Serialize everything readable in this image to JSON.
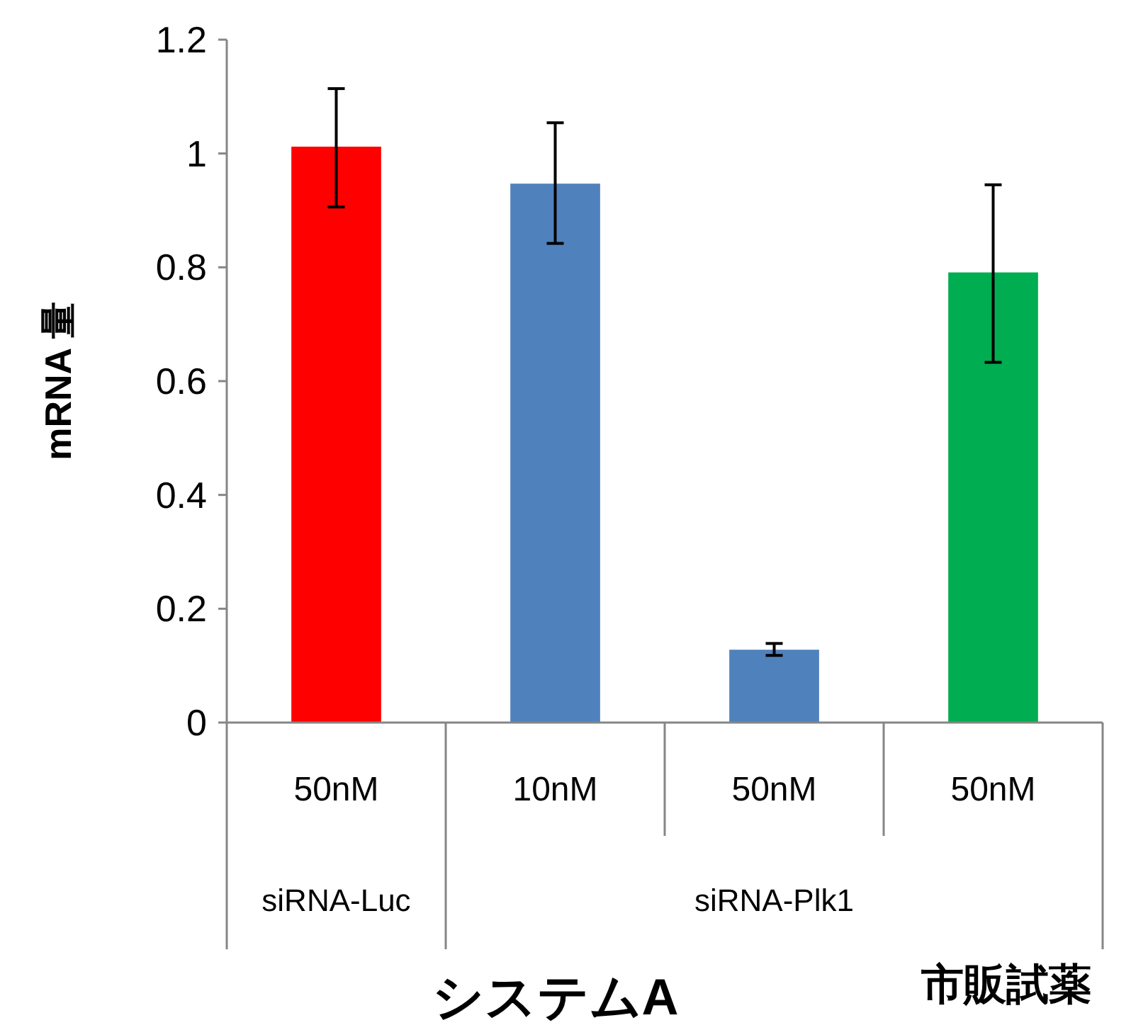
{
  "chart_data": {
    "type": "bar",
    "ylabel": "mRNA 量",
    "categories": [
      "50nM",
      "10nM",
      "50nM",
      "50nM"
    ],
    "values": [
      1.012,
      0.947,
      0.128,
      0.791
    ],
    "colors": [
      "#ff0000",
      "#4f81bd",
      "#4f81bd",
      "#00ad50"
    ],
    "errors": [
      [
        0.906,
        1.114
      ],
      [
        0.842,
        1.054
      ],
      [
        0.118,
        0.139
      ],
      [
        0.633,
        0.945
      ]
    ],
    "ylim": [
      0,
      1.2
    ],
    "yticks": [
      0,
      0.2,
      0.4,
      0.6,
      0.8,
      1,
      1.2
    ],
    "annotations": [
      "siRNA-Luc",
      "siRNA-Plk1",
      "システムA",
      "市販試薬"
    ],
    "grid": false
  }
}
